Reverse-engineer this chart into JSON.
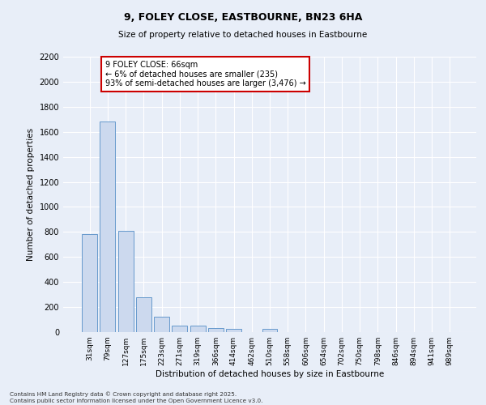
{
  "title_line1": "9, FOLEY CLOSE, EASTBOURNE, BN23 6HA",
  "title_line2": "Size of property relative to detached houses in Eastbourne",
  "xlabel": "Distribution of detached houses by size in Eastbourne",
  "ylabel": "Number of detached properties",
  "categories": [
    "31sqm",
    "79sqm",
    "127sqm",
    "175sqm",
    "223sqm",
    "271sqm",
    "319sqm",
    "366sqm",
    "414sqm",
    "462sqm",
    "510sqm",
    "558sqm",
    "606sqm",
    "654sqm",
    "702sqm",
    "750sqm",
    "798sqm",
    "846sqm",
    "894sqm",
    "941sqm",
    "989sqm"
  ],
  "values": [
    780,
    1680,
    810,
    280,
    120,
    55,
    50,
    35,
    25,
    0,
    25,
    0,
    0,
    0,
    0,
    0,
    0,
    0,
    0,
    0,
    0
  ],
  "bar_color": "#ccd9ee",
  "bar_edge_color": "#6699cc",
  "background_color": "#e8eef8",
  "grid_color": "#ffffff",
  "ylim": [
    0,
    2200
  ],
  "yticks": [
    0,
    200,
    400,
    600,
    800,
    1000,
    1200,
    1400,
    1600,
    1800,
    2000,
    2200
  ],
  "annotation_text": "9 FOLEY CLOSE: 66sqm\n← 6% of detached houses are smaller (235)\n93% of semi-detached houses are larger (3,476) →",
  "annotation_box_color": "#ffffff",
  "annotation_box_edge": "#cc0000",
  "footer_line1": "Contains HM Land Registry data © Crown copyright and database right 2025.",
  "footer_line2": "Contains public sector information licensed under the Open Government Licence v3.0."
}
